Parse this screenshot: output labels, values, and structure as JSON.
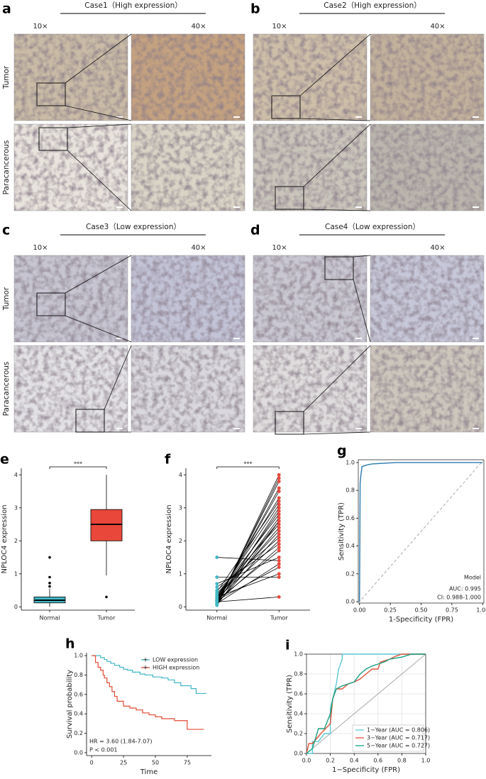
{
  "ihc_panels": [
    {
      "label": "a",
      "title": "Case1（High expression）",
      "magnifications": [
        "10×",
        "40×"
      ],
      "rows": [
        "Tumor",
        "Paracancerous"
      ]
    },
    {
      "label": "b",
      "title": "Case2（High expression）",
      "magnifications": [
        "10×",
        "40×"
      ]
    },
    {
      "label": "c",
      "title": "Case3（Low expression）",
      "magnifications": [
        "10×",
        "40×"
      ],
      "rows": [
        "Tumor",
        "Paracancerous"
      ]
    },
    {
      "label": "d",
      "title": "Case4（Low expression）",
      "magnifications": [
        "10×",
        "40×"
      ]
    }
  ],
  "chart_data": [
    {
      "type": "box",
      "panel_label": "e",
      "categories": [
        "Normal",
        "Tumor"
      ],
      "colors": [
        "#41b6c4",
        "#e8473a"
      ],
      "boxes": [
        {
          "whisker_low": 0.0,
          "q1": 0.12,
          "median": 0.2,
          "q3": 0.3,
          "whisker_high": 0.55,
          "outliers": [
            0.62,
            0.72,
            0.9,
            1.5
          ]
        },
        {
          "whisker_low": 0.95,
          "q1": 2.0,
          "median": 2.5,
          "q3": 2.95,
          "whisker_high": 4.0,
          "outliers": [
            0.3
          ]
        }
      ],
      "ylabel": "NPLOC4 expression",
      "ylim": [
        -0.1,
        4.2
      ],
      "yticks": [
        0,
        1,
        2,
        3,
        4
      ],
      "significance": "***"
    },
    {
      "type": "paired",
      "panel_label": "f",
      "categories": [
        "Normal",
        "Tumor"
      ],
      "colors": [
        "#41b6c4",
        "#e8473a"
      ],
      "values": [
        [
          0.05,
          0.1,
          0.15,
          0.2,
          0.25,
          0.3,
          0.1,
          0.2,
          0.35,
          0.15,
          0.05,
          0.4,
          0.2,
          0.3,
          0.1,
          0.5,
          0.25,
          0.6,
          0.15,
          0.2,
          0.7,
          0.1,
          0.3,
          0.9,
          0.2,
          1.5,
          0.05,
          0.25,
          0.45,
          0.15
        ],
        [
          4.0,
          3.8,
          3.6,
          3.5,
          3.3,
          3.1,
          3.0,
          2.9,
          2.8,
          2.7,
          2.6,
          2.5,
          2.4,
          2.3,
          2.2,
          2.1,
          2.0,
          1.9,
          1.8,
          1.7,
          1.5,
          1.3,
          1.0,
          0.9,
          1.2,
          1.4,
          3.9,
          2.6,
          3.2,
          0.3
        ]
      ],
      "ylabel": "NPLOC4 expression",
      "ylim": [
        -0.1,
        4.2
      ],
      "yticks": [
        0,
        1,
        2,
        3,
        4
      ],
      "significance": "***"
    },
    {
      "type": "line",
      "panel_label": "g",
      "series": [
        {
          "color": "#2a7ab0",
          "x": [
            0,
            0.005,
            0.01,
            0.02,
            0.05,
            0.1,
            0.3,
            1
          ],
          "values": [
            0,
            0.85,
            0.9,
            0.97,
            0.98,
            0.99,
            1,
            1
          ]
        }
      ],
      "xlabel": "1-Specificity (FPR)",
      "ylabel": "Sensitivity (TPR)",
      "xlim": [
        -0.01,
        1.01
      ],
      "ylim": [
        -0.01,
        1.02
      ],
      "xticks": [
        {
          "value": 0,
          "label": "0.00"
        },
        0.25,
        {
          "value": 0.5,
          "label": "0.50"
        },
        0.75,
        {
          "value": 1,
          "label": "1.00"
        }
      ],
      "yticks": [
        {
          "value": 0,
          "label": "0.0"
        },
        0.2,
        0.4,
        0.6,
        0.8,
        {
          "value": 1,
          "label": "1.0"
        }
      ],
      "frame": true,
      "diagonal": "dashed",
      "legend_title": "Model",
      "annotations": [
        "AUC: 0.995",
        "CI: 0.988-1.000"
      ]
    },
    {
      "type": "step",
      "panel_label": "h",
      "series": [
        {
          "name": "LOW expression",
          "color": "#3fb7c7",
          "x": [
            0,
            7,
            10,
            12,
            15,
            18,
            22,
            25,
            28,
            32,
            38,
            42,
            48,
            55,
            60,
            65,
            70,
            78,
            82,
            90
          ],
          "values": [
            1,
            0.98,
            0.96,
            0.94,
            0.92,
            0.9,
            0.88,
            0.86,
            0.85,
            0.83,
            0.81,
            0.8,
            0.78,
            0.77,
            0.75,
            0.72,
            0.69,
            0.66,
            0.61,
            0.61
          ]
        },
        {
          "name": "HIGH expression",
          "color": "#e34a33",
          "x": [
            0,
            3,
            5,
            7,
            9,
            10,
            12,
            14,
            16,
            18,
            20,
            25,
            30,
            35,
            40,
            45,
            50,
            55,
            60,
            65,
            75,
            78,
            88
          ],
          "values": [
            1,
            0.93,
            0.88,
            0.85,
            0.8,
            0.77,
            0.72,
            0.68,
            0.63,
            0.58,
            0.53,
            0.48,
            0.46,
            0.44,
            0.41,
            0.39,
            0.37,
            0.35,
            0.35,
            0.33,
            0.24,
            0.24,
            0.24
          ]
        }
      ],
      "xlabel": "Time",
      "ylabel": "Survival probability",
      "xlim": [
        -4,
        94
      ],
      "ylim": [
        -0.03,
        1.03
      ],
      "xticks": [
        0,
        25,
        50,
        75
      ],
      "yticks": [
        {
          "value": 0,
          "label": "0.0"
        },
        0.2,
        0.4,
        0.6,
        0.8,
        {
          "value": 1,
          "label": "1.0"
        }
      ],
      "legend": "upper right",
      "annotations": [
        "HR = 3.60 (1.84-7.07)",
        "P < 0.001"
      ]
    },
    {
      "type": "line",
      "panel_label": "i",
      "series": [
        {
          "name": "1−Year (AUC = 0.806)",
          "color": "#5bc8d8",
          "x": [
            0,
            0.05,
            0.05,
            0.1,
            0.15,
            0.2,
            0.2,
            0.22,
            0.25,
            0.27,
            0.3,
            0.3,
            1
          ],
          "values": [
            0,
            0,
            0.12,
            0.12,
            0.2,
            0.2,
            0.45,
            0.55,
            0.7,
            0.85,
            0.95,
            1,
            1
          ]
        },
        {
          "name": "3−Year (AUC = 0.717)",
          "color": "#e0533a",
          "x": [
            0,
            0.02,
            0.05,
            0.12,
            0.2,
            0.22,
            0.25,
            0.3,
            0.35,
            0.4,
            0.45,
            0.5,
            0.55,
            0.6,
            0.62,
            0.7,
            0.75,
            0.8,
            1
          ],
          "values": [
            0,
            0.1,
            0.1,
            0.2,
            0.3,
            0.55,
            0.65,
            0.65,
            0.7,
            0.72,
            0.75,
            0.8,
            0.85,
            0.85,
            0.92,
            0.95,
            0.98,
            1,
            1
          ]
        },
        {
          "name": "5−Year (AUC = 0.727)",
          "color": "#1a9e80",
          "x": [
            0,
            0.05,
            0.1,
            0.15,
            0.2,
            0.22,
            0.25,
            0.3,
            0.35,
            0.4,
            0.45,
            0.5,
            0.55,
            0.6,
            0.65,
            0.7,
            0.8,
            0.88,
            1
          ],
          "values": [
            0,
            0.05,
            0.25,
            0.25,
            0.4,
            0.55,
            0.65,
            0.68,
            0.7,
            0.72,
            0.8,
            0.85,
            0.88,
            0.9,
            0.92,
            0.95,
            0.97,
            1,
            1
          ]
        }
      ],
      "xlabel": "1−Specificity (FPR)",
      "ylabel": "Sensitivity (TPR)",
      "xlim": [
        0,
        1
      ],
      "ylim": [
        0,
        1
      ],
      "xticks": [
        {
          "value": 0,
          "label": "0.0"
        },
        0.2,
        0.4,
        0.6,
        0.8,
        {
          "value": 1,
          "label": "1.0"
        }
      ],
      "yticks": [
        {
          "value": 0,
          "label": "0.0"
        },
        0.2,
        0.4,
        0.6,
        0.8,
        {
          "value": 1,
          "label": "1.0"
        }
      ],
      "grid": true,
      "frame": true,
      "diagonal": "solid",
      "legend": "lower right"
    }
  ]
}
